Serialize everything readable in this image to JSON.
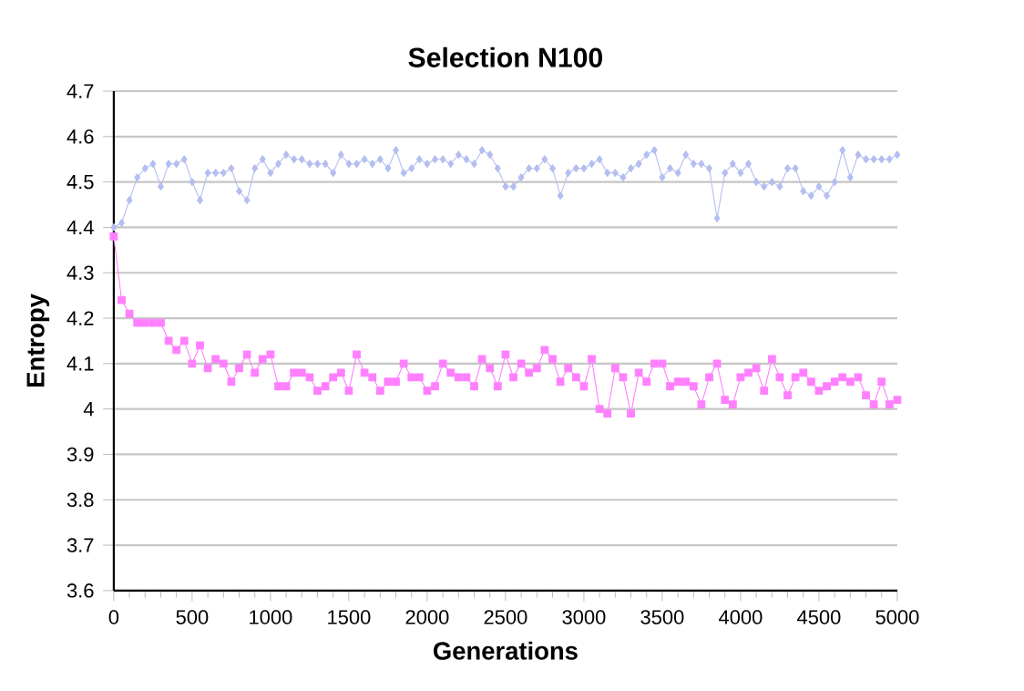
{
  "chart_data": {
    "type": "line",
    "title": "Selection  N100",
    "xlabel": "Generations",
    "ylabel": "Entropy",
    "x": [
      0,
      50,
      100,
      150,
      200,
      250,
      300,
      350,
      400,
      450,
      500,
      550,
      600,
      650,
      700,
      750,
      800,
      850,
      900,
      950,
      1000,
      1050,
      1100,
      1150,
      1200,
      1250,
      1300,
      1350,
      1400,
      1450,
      1500,
      1550,
      1600,
      1650,
      1700,
      1750,
      1800,
      1850,
      1900,
      1950,
      2000,
      2050,
      2100,
      2150,
      2200,
      2250,
      2300,
      2350,
      2400,
      2450,
      2500,
      2550,
      2600,
      2650,
      2700,
      2750,
      2800,
      2850,
      2900,
      2950,
      3000,
      3050,
      3100,
      3150,
      3200,
      3250,
      3300,
      3350,
      3400,
      3450,
      3500,
      3550,
      3600,
      3650,
      3700,
      3750,
      3800,
      3850,
      3900,
      3950,
      4000,
      4050,
      4100,
      4150,
      4200,
      4250,
      4300,
      4350,
      4400,
      4450,
      4500,
      4550,
      4600,
      4650,
      4700,
      4750,
      4800,
      4850,
      4900,
      4950,
      5000
    ],
    "series": [
      {
        "color": "#b4bef0",
        "marker": "diamond",
        "values": [
          4.4,
          4.41,
          4.46,
          4.51,
          4.53,
          4.54,
          4.49,
          4.54,
          4.54,
          4.55,
          4.5,
          4.46,
          4.52,
          4.52,
          4.52,
          4.53,
          4.48,
          4.46,
          4.53,
          4.55,
          4.52,
          4.54,
          4.56,
          4.55,
          4.55,
          4.54,
          4.54,
          4.54,
          4.52,
          4.56,
          4.54,
          4.54,
          4.55,
          4.54,
          4.55,
          4.53,
          4.57,
          4.52,
          4.53,
          4.55,
          4.54,
          4.55,
          4.55,
          4.54,
          4.56,
          4.55,
          4.54,
          4.57,
          4.56,
          4.53,
          4.49,
          4.49,
          4.51,
          4.53,
          4.53,
          4.55,
          4.53,
          4.47,
          4.52,
          4.53,
          4.53,
          4.54,
          4.55,
          4.52,
          4.52,
          4.51,
          4.53,
          4.54,
          4.56,
          4.57,
          4.51,
          4.53,
          4.52,
          4.56,
          4.54,
          4.54,
          4.53,
          4.42,
          4.52,
          4.54,
          4.52,
          4.54,
          4.5,
          4.49,
          4.5,
          4.49,
          4.53,
          4.53,
          4.48,
          4.47,
          4.49,
          4.47,
          4.5,
          4.57,
          4.51,
          4.56,
          4.55,
          4.55,
          4.55,
          4.55,
          4.56
        ]
      },
      {
        "color": "#ff80ff",
        "marker": "square",
        "values": [
          4.38,
          4.24,
          4.21,
          4.19,
          4.19,
          4.19,
          4.19,
          4.15,
          4.13,
          4.15,
          4.1,
          4.14,
          4.09,
          4.11,
          4.1,
          4.06,
          4.09,
          4.12,
          4.08,
          4.11,
          4.12,
          4.05,
          4.05,
          4.08,
          4.08,
          4.07,
          4.04,
          4.05,
          4.07,
          4.08,
          4.04,
          4.12,
          4.08,
          4.07,
          4.04,
          4.06,
          4.06,
          4.1,
          4.07,
          4.07,
          4.04,
          4.05,
          4.1,
          4.08,
          4.07,
          4.07,
          4.05,
          4.11,
          4.09,
          4.05,
          4.12,
          4.07,
          4.1,
          4.08,
          4.09,
          4.13,
          4.11,
          4.06,
          4.09,
          4.07,
          4.05,
          4.11,
          4.0,
          3.99,
          4.09,
          4.07,
          3.99,
          4.08,
          4.06,
          4.1,
          4.1,
          4.05,
          4.06,
          4.06,
          4.05,
          4.01,
          4.07,
          4.1,
          4.02,
          4.01,
          4.07,
          4.08,
          4.09,
          4.04,
          4.11,
          4.07,
          4.03,
          4.07,
          4.08,
          4.06,
          4.04,
          4.05,
          4.06,
          4.07,
          4.06,
          4.07,
          4.03,
          4.01,
          4.06,
          4.01,
          4.02
        ]
      }
    ],
    "xlim": [
      0,
      5000
    ],
    "xticks": [
      0,
      500,
      1000,
      1500,
      2000,
      2500,
      3000,
      3500,
      4000,
      4500,
      5000
    ],
    "ylim": [
      3.6,
      4.7
    ],
    "yticks": [
      3.6,
      3.7,
      3.8,
      3.9,
      4,
      4.1,
      4.2,
      4.3,
      4.4,
      4.5,
      4.6,
      4.7
    ],
    "grid": "y"
  }
}
